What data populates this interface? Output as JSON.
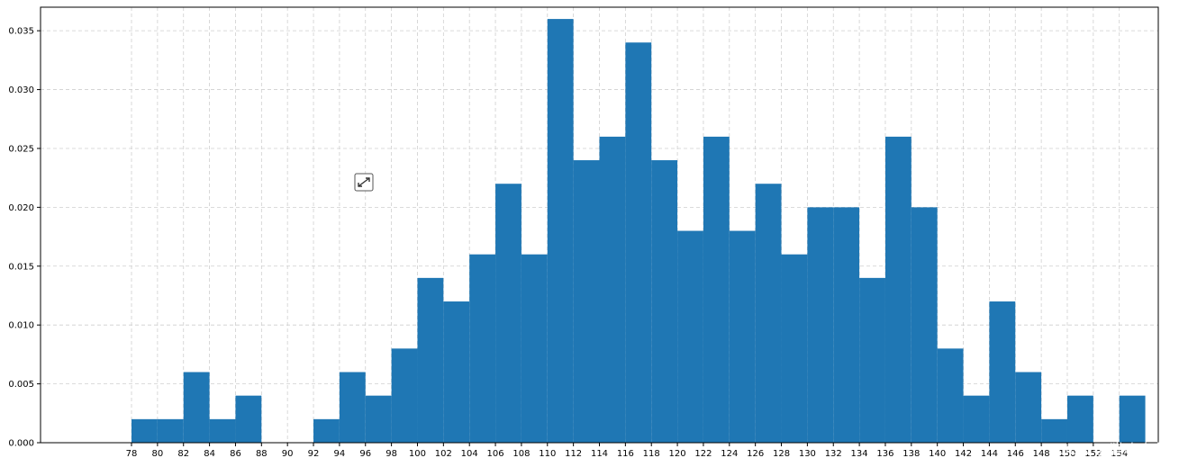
{
  "chart_data": {
    "type": "bar",
    "title": "",
    "xlabel": "",
    "ylabel": "",
    "grid": true,
    "bar_color": "#1f77b4",
    "grid_color": "#cfcfcf",
    "bin_width": 2,
    "xlim": [
      71,
      157
    ],
    "ylim": [
      0,
      0.037
    ],
    "x_ticks": [
      78,
      80,
      82,
      84,
      86,
      88,
      90,
      92,
      94,
      96,
      98,
      100,
      102,
      104,
      106,
      108,
      110,
      112,
      114,
      116,
      118,
      120,
      122,
      124,
      126,
      128,
      130,
      132,
      134,
      136,
      138,
      140,
      142,
      144,
      146,
      148,
      150,
      152,
      154
    ],
    "x_tick_labels": [
      "78",
      "80",
      "82",
      "84",
      "86",
      "88",
      "90",
      "92",
      "94",
      "96",
      "98",
      "100",
      "102",
      "104",
      "106",
      "108",
      "110",
      "112",
      "114",
      "116",
      "118",
      "120",
      "122",
      "124",
      "126",
      "128",
      "130",
      "132",
      "134",
      "136",
      "138",
      "140",
      "142",
      "144",
      "146",
      "148",
      "150",
      "152",
      "154"
    ],
    "y_ticks": [
      0,
      0.005,
      0.01,
      0.015,
      0.02,
      0.025,
      0.03,
      0.035
    ],
    "y_tick_labels": [
      "0.000",
      "0.005",
      "0.010",
      "0.015",
      "0.020",
      "0.025",
      "0.030",
      "0.035"
    ],
    "bins": [
      78,
      80,
      82,
      84,
      86,
      88,
      90,
      92,
      94,
      96,
      98,
      100,
      102,
      104,
      106,
      108,
      110,
      112,
      114,
      116,
      118,
      120,
      122,
      124,
      126,
      128,
      130,
      132,
      134,
      136,
      138,
      140,
      142,
      144,
      146,
      148,
      150,
      152,
      154
    ],
    "values": [
      0.002,
      0.002,
      0.006,
      0.002,
      0.004,
      0,
      0,
      0.002,
      0.006,
      0.004,
      0.008,
      0.014,
      0.012,
      0.016,
      0.022,
      0.016,
      0.036,
      0.024,
      0.026,
      0.034,
      0.024,
      0.018,
      0.026,
      0.018,
      0.022,
      0.016,
      0.02,
      0.02,
      0.014,
      0.026,
      0.02,
      0.008,
      0.004,
      0.012,
      0.006,
      0.002,
      0.004,
      0,
      0.004
    ]
  },
  "watermark": {
    "text": "CSDN @猫吃小鱼"
  }
}
